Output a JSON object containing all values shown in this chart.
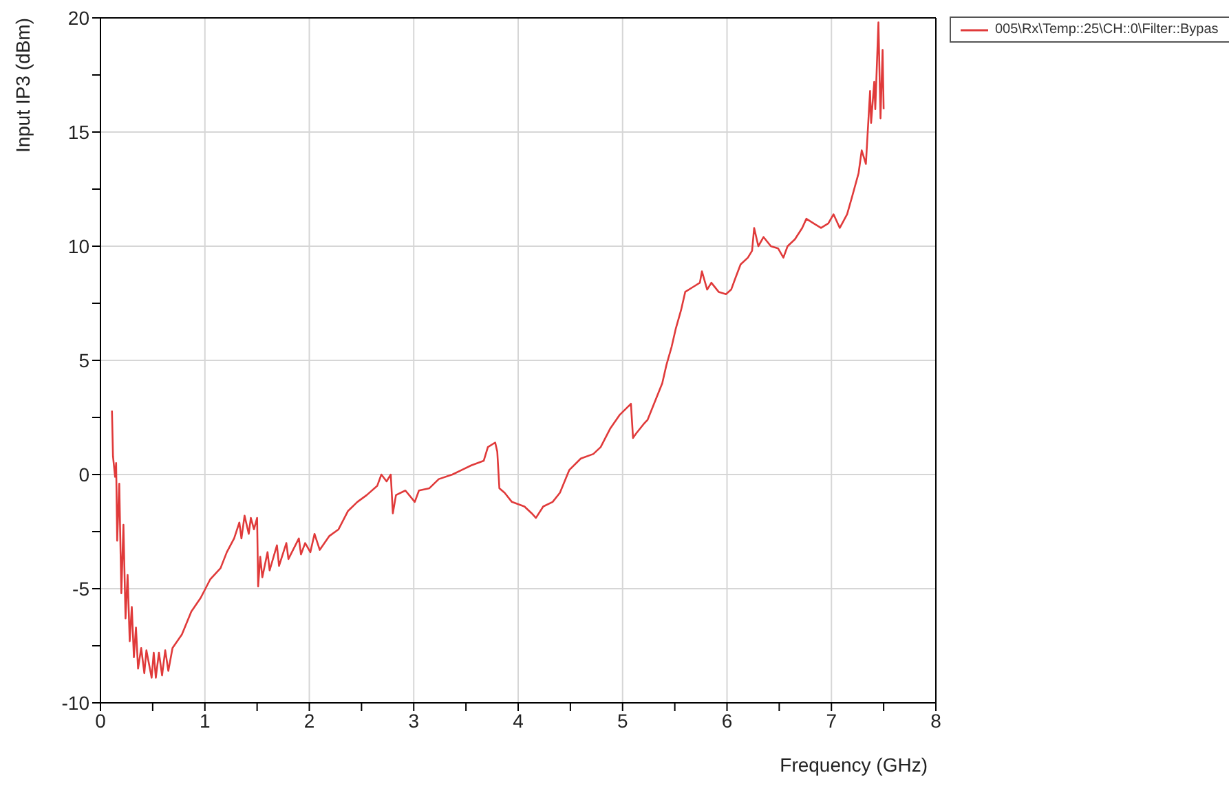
{
  "chart_data": {
    "type": "line",
    "xlabel": "Frequency (GHz)",
    "ylabel": "Input IP3 (dBm)",
    "xlim": [
      0,
      8
    ],
    "xticks": [
      0,
      {
        "value": 0.5,
        "label": null
      },
      1,
      {
        "value": 1.5,
        "label": null
      },
      2,
      {
        "value": 2.5,
        "label": null
      },
      3,
      {
        "value": 3.5,
        "label": null
      },
      4,
      {
        "value": 4.5,
        "label": null
      },
      5,
      {
        "value": 5.5,
        "label": null
      },
      6,
      {
        "value": 6.5,
        "label": null
      },
      7,
      {
        "value": 7.5,
        "label": null
      },
      8
    ],
    "ylim": [
      -10,
      20
    ],
    "yticks": [
      -10,
      {
        "value": -7.5,
        "label": null
      },
      -5,
      {
        "value": -2.5,
        "label": null
      },
      0,
      {
        "value": 2.5,
        "label": null
      },
      5,
      {
        "value": 7.5,
        "label": null
      },
      10,
      {
        "value": 12.5,
        "label": null
      },
      15,
      {
        "value": 17.5,
        "label": null
      },
      20
    ],
    "grid": true,
    "legend": "top right",
    "marker": "none",
    "line_style": "solid",
    "series": [
      {
        "name": "005\\Rx\\Temp::25\\CH::0\\Filter::Bypas",
        "color": "#e03a3a",
        "x": [
          0.11,
          0.12,
          0.14,
          0.15,
          0.16,
          0.18,
          0.2,
          0.22,
          0.24,
          0.26,
          0.28,
          0.3,
          0.32,
          0.34,
          0.36,
          0.39,
          0.42,
          0.44,
          0.49,
          0.51,
          0.53,
          0.56,
          0.59,
          0.62,
          0.65,
          0.69,
          0.78,
          0.87,
          0.96,
          1.05,
          1.15,
          1.21,
          1.28,
          1.33,
          1.35,
          1.38,
          1.42,
          1.44,
          1.47,
          1.5,
          1.51,
          1.53,
          1.55,
          1.6,
          1.62,
          1.69,
          1.71,
          1.78,
          1.8,
          1.9,
          1.92,
          1.96,
          2.01,
          2.05,
          2.1,
          2.19,
          2.28,
          2.37,
          2.46,
          2.55,
          2.65,
          2.69,
          2.74,
          2.78,
          2.8,
          2.83,
          2.92,
          3.01,
          3.05,
          3.15,
          3.24,
          3.37,
          3.46,
          3.55,
          3.67,
          3.71,
          3.78,
          3.8,
          3.82,
          3.87,
          3.94,
          4.06,
          4.13,
          4.17,
          4.24,
          4.33,
          4.4,
          4.49,
          4.6,
          4.72,
          4.79,
          4.88,
          4.97,
          5.08,
          5.1,
          5.13,
          5.2,
          5.24,
          5.31,
          5.38,
          5.42,
          5.47,
          5.51,
          5.56,
          5.6,
          5.67,
          5.74,
          5.76,
          5.81,
          5.85,
          5.92,
          5.99,
          6.04,
          6.08,
          6.13,
          6.2,
          6.24,
          6.26,
          6.3,
          6.35,
          6.42,
          6.49,
          6.54,
          6.58,
          6.65,
          6.72,
          6.76,
          6.83,
          6.9,
          6.97,
          7.02,
          7.08,
          7.15,
          7.2,
          7.26,
          7.29,
          7.33,
          7.37,
          7.38,
          7.41,
          7.42,
          7.45,
          7.47,
          7.49,
          7.5
        ],
        "values": [
          2.8,
          0.8,
          -0.1,
          0.5,
          -2.9,
          -0.4,
          -5.2,
          -2.2,
          -6.3,
          -4.4,
          -7.3,
          -5.8,
          -8,
          -6.7,
          -8.5,
          -7.6,
          -8.7,
          -7.7,
          -8.9,
          -7.8,
          -8.9,
          -7.8,
          -8.8,
          -7.7,
          -8.6,
          -7.6,
          -7,
          -6,
          -5.4,
          -4.6,
          -4.1,
          -3.4,
          -2.8,
          -2.1,
          -2.8,
          -1.8,
          -2.6,
          -1.9,
          -2.4,
          -1.9,
          -4.9,
          -3.6,
          -4.5,
          -3.4,
          -4.2,
          -3.1,
          -4,
          -3,
          -3.7,
          -2.8,
          -3.5,
          -3,
          -3.4,
          -2.6,
          -3.3,
          -2.7,
          -2.4,
          -1.6,
          -1.2,
          -0.9,
          -0.5,
          0,
          -0.3,
          0,
          -1.7,
          -0.9,
          -0.7,
          -1.2,
          -0.7,
          -0.6,
          -0.2,
          0,
          0.2,
          0.4,
          0.6,
          1.2,
          1.4,
          1,
          -0.6,
          -0.8,
          -1.2,
          -1.4,
          -1.7,
          -1.9,
          -1.4,
          -1.2,
          -0.8,
          0.2,
          0.7,
          0.9,
          1.2,
          2,
          2.6,
          3.1,
          1.6,
          1.8,
          2.2,
          2.4,
          3.2,
          4,
          4.8,
          5.6,
          6.4,
          7.2,
          8,
          8.2,
          8.4,
          8.9,
          8.1,
          8.4,
          8,
          7.9,
          8.1,
          8.6,
          9.2,
          9.5,
          9.8,
          10.8,
          10,
          10.4,
          10,
          9.9,
          9.5,
          10,
          10.3,
          10.8,
          11.2,
          11,
          10.8,
          11,
          11.4,
          10.8,
          11.4,
          12.2,
          13.2,
          14.2,
          13.6,
          16.8,
          15.4,
          17.2,
          16,
          19.8,
          15.6,
          18.6,
          16
        ]
      }
    ]
  }
}
